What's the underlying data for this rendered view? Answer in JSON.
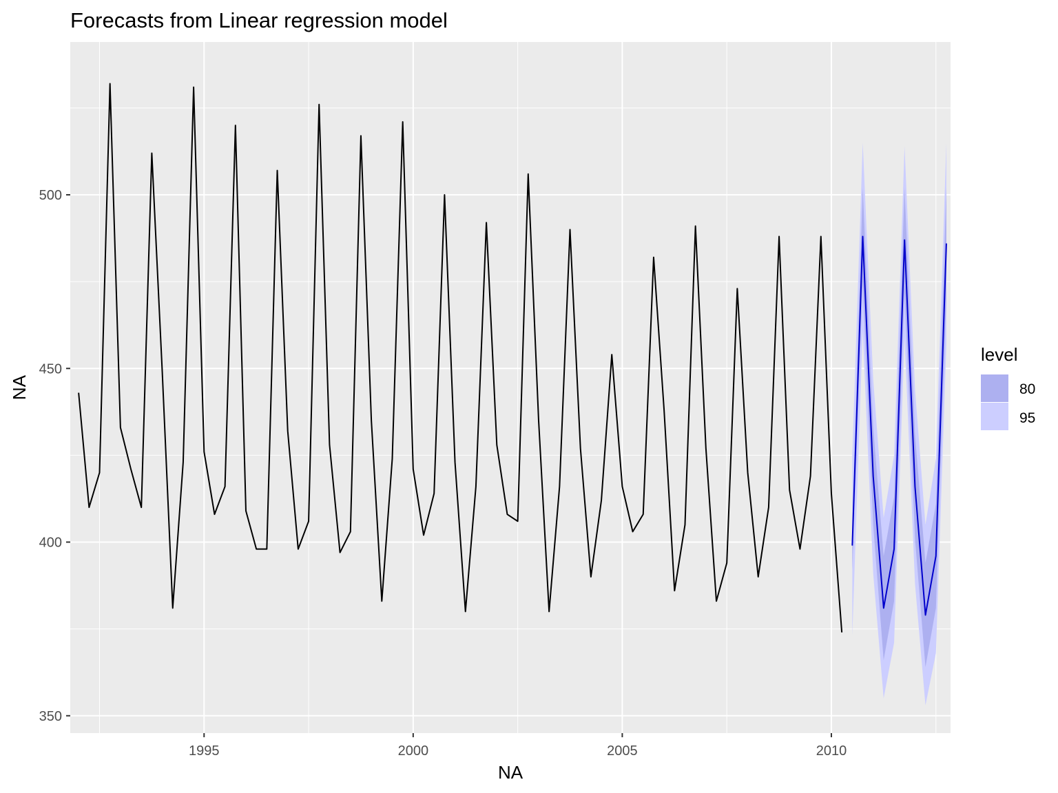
{
  "chart_data": {
    "type": "line",
    "title": "Forecasts from Linear regression model",
    "xlabel": "NA",
    "ylabel": "NA",
    "xlim": [
      1991.8,
      2012.85
    ],
    "ylim": [
      345,
      544
    ],
    "x_ticks": [
      1995,
      2000,
      2005,
      2010
    ],
    "x_tick_labels": [
      "1995",
      "2000",
      "2005",
      "2010"
    ],
    "y_ticks": [
      350,
      400,
      450,
      500
    ],
    "y_tick_labels": [
      "350",
      "400",
      "450",
      "500"
    ],
    "grid": true,
    "background": "#ebebeb",
    "legend": {
      "title": "level",
      "position": "right",
      "items": [
        {
          "label": "80",
          "color": "#adb0f0"
        },
        {
          "label": "95",
          "color": "#ccceff"
        }
      ]
    },
    "colors": {
      "history": "#000000",
      "forecast": "#0000cc",
      "band80": "#adb0f0",
      "band95": "#ccceff"
    },
    "history": {
      "start": 1992.0,
      "step": 0.25,
      "values": [
        443,
        410,
        420,
        532,
        433,
        421,
        410,
        512,
        449,
        381,
        423,
        531,
        426,
        408,
        416,
        520,
        409,
        398,
        398,
        507,
        432,
        398,
        406,
        526,
        428,
        397,
        403,
        517,
        435,
        383,
        424,
        521,
        421,
        402,
        414,
        500,
        423,
        380,
        416,
        492,
        428,
        408,
        406,
        506,
        435,
        380,
        416,
        490,
        427,
        390,
        412,
        454,
        416,
        403,
        408,
        482,
        438,
        386,
        405,
        491,
        427,
        383,
        394,
        473,
        420,
        390,
        410,
        488,
        415,
        398,
        419,
        488,
        414,
        374
      ]
    },
    "forecast": {
      "start": 2010.5,
      "step": 0.25,
      "mean": [
        399,
        488,
        419,
        381,
        398,
        487,
        416,
        379,
        396,
        486
      ],
      "lo80": [
        392,
        474,
        405,
        366,
        383,
        472,
        401,
        364,
        381,
        470
      ],
      "hi80": [
        406,
        502,
        433,
        396,
        413,
        502,
        431,
        394,
        411,
        502
      ],
      "lo95": [
        373,
        461,
        391,
        355,
        371,
        459,
        388,
        353,
        368,
        457
      ],
      "hi95": [
        425,
        515,
        447,
        407,
        425,
        514,
        444,
        405,
        424,
        515
      ]
    }
  }
}
